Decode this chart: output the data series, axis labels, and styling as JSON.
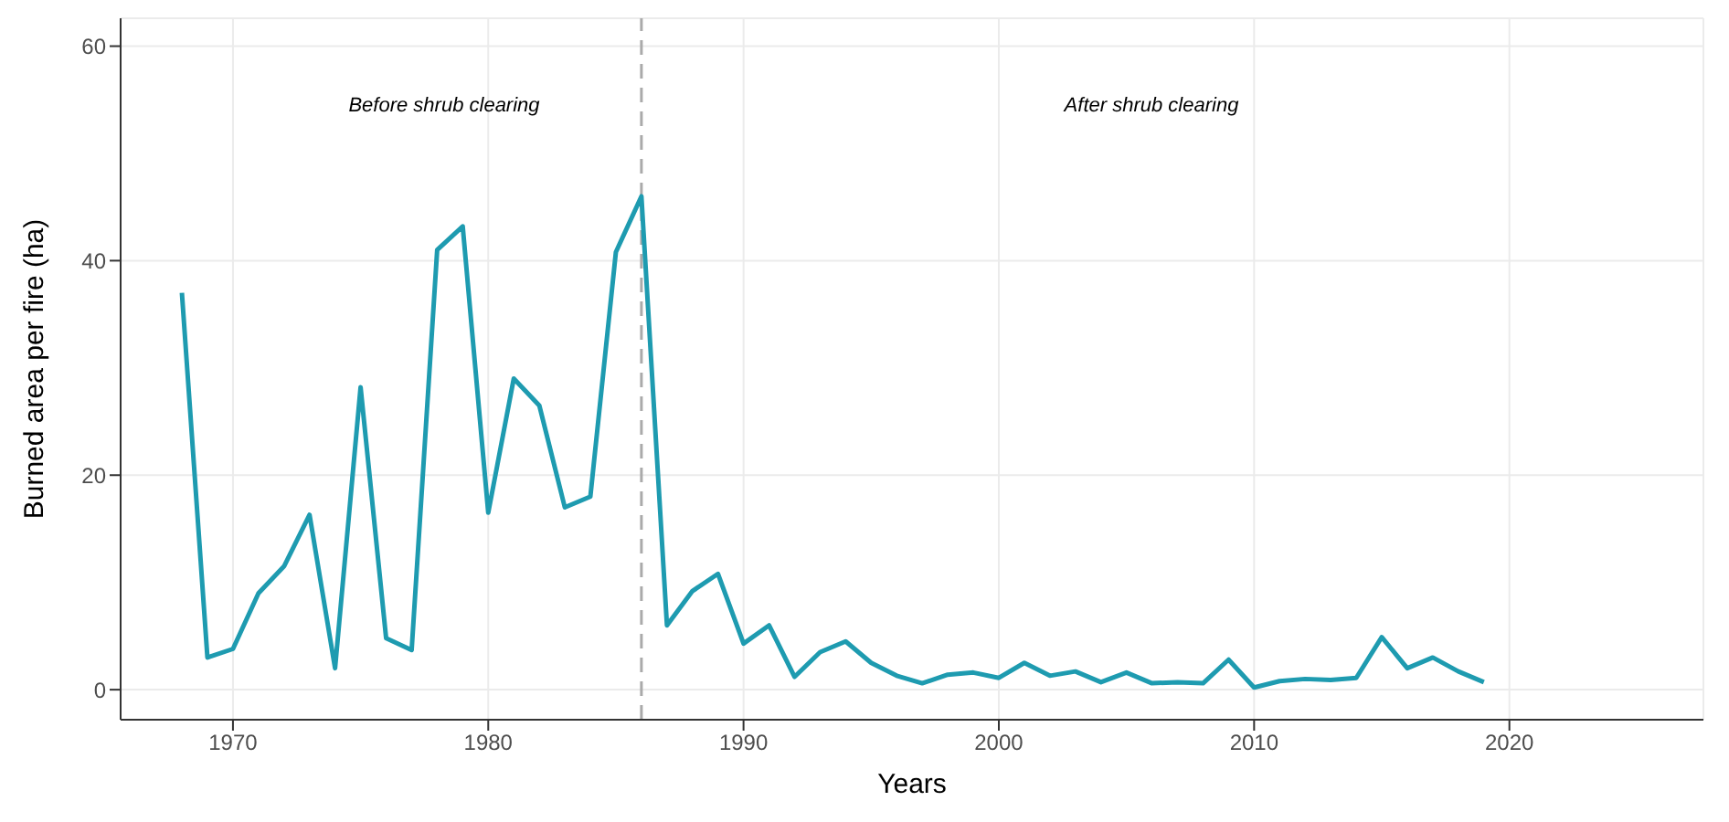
{
  "chart_data": {
    "type": "line",
    "xlabel": "Years",
    "ylabel": "Burned area per fire (ha)",
    "x": [
      1968,
      1969,
      1970,
      1971,
      1972,
      1973,
      1974,
      1975,
      1976,
      1977,
      1978,
      1979,
      1980,
      1981,
      1982,
      1983,
      1984,
      1985,
      1986,
      1987,
      1988,
      1989,
      1990,
      1991,
      1992,
      1993,
      1994,
      1995,
      1996,
      1997,
      1998,
      1999,
      2000,
      2001,
      2002,
      2003,
      2004,
      2005,
      2006,
      2007,
      2008,
      2009,
      2010,
      2011,
      2012,
      2013,
      2014,
      2015,
      2016,
      2017,
      2018,
      2019
    ],
    "series": [
      {
        "color": "#1e9bb0",
        "values": [
          37,
          3,
          3.8,
          9,
          11.5,
          16.3,
          2,
          28.2,
          4.8,
          3.7,
          41,
          43.2,
          16.5,
          29,
          26.5,
          17,
          18,
          40.8,
          46,
          6,
          9.2,
          10.8,
          4.3,
          6,
          1.2,
          3.5,
          4.5,
          2.5,
          1.3,
          0.6,
          1.4,
          1.6,
          1.1,
          2.5,
          1.3,
          1.7,
          0.7,
          1.6,
          0.6,
          0.7,
          0.6,
          2.8,
          0.2,
          0.8,
          1,
          0.9,
          1.1,
          4.9,
          2,
          3,
          1.7,
          0.7
        ]
      }
    ],
    "xlim": [
      1965.6,
      2027.6
    ],
    "xticks": [
      1970,
      1980,
      1990,
      2000,
      2010,
      2020
    ],
    "ylim": [
      -2.8,
      62.6
    ],
    "yticks": [
      0,
      20,
      40,
      60
    ],
    "grid": true,
    "marker": "none",
    "line_style": "solid",
    "ref_lines": [
      {
        "axis": "x",
        "value": 1986,
        "color": "#aaaaaa",
        "line_style": "dashed"
      }
    ],
    "annotations": [
      "Before shrub clearing",
      "After shrub clearing"
    ]
  }
}
